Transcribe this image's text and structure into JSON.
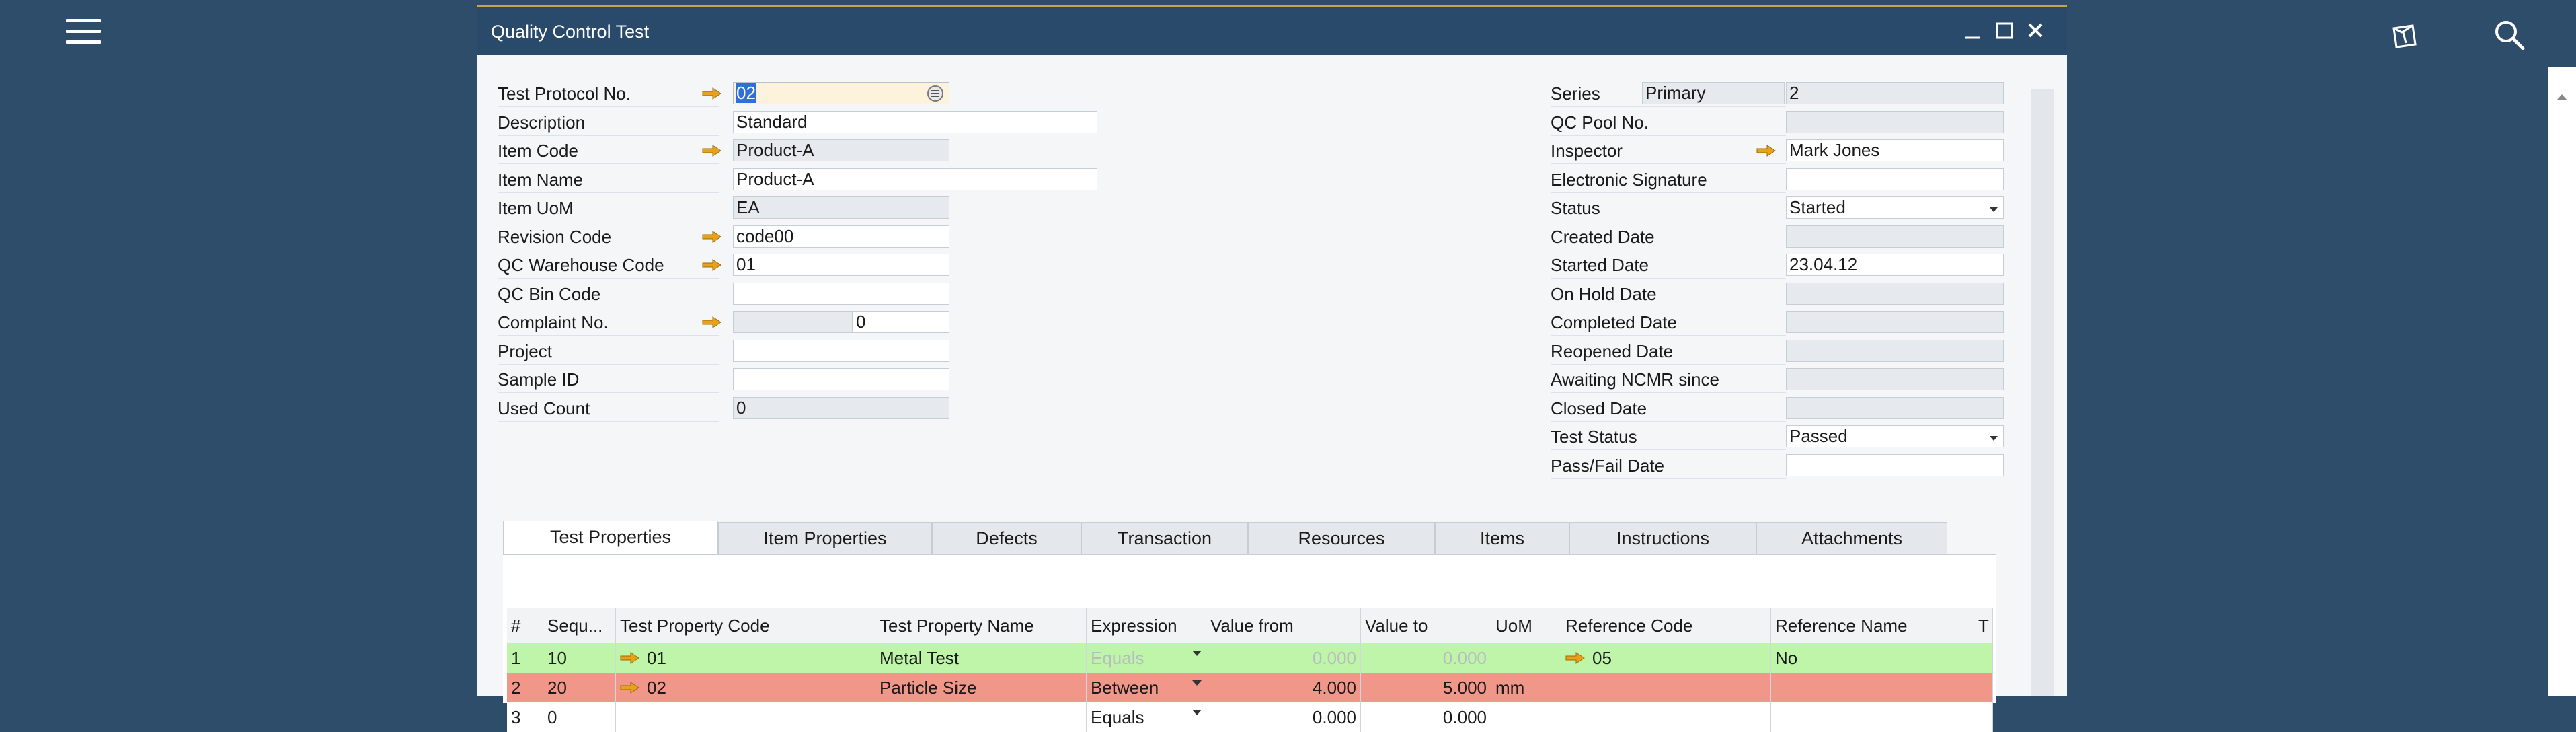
{
  "window": {
    "title": "Quality Control Test"
  },
  "header_left": [
    {
      "label": "Test Protocol No.",
      "value": "02",
      "arrow": true,
      "kind": "selected"
    },
    {
      "label": "Description",
      "value": "Standard",
      "kind": "wide"
    },
    {
      "label": "Item Code",
      "value": "Product-A",
      "arrow": true,
      "kind": "ro"
    },
    {
      "label": "Item Name",
      "value": "Product-A",
      "kind": "wide"
    },
    {
      "label": "Item UoM",
      "value": "EA",
      "kind": "ro"
    },
    {
      "label": "Revision Code",
      "value": "code00",
      "arrow": true,
      "kind": "normal"
    },
    {
      "label": "QC Warehouse Code",
      "value": "01",
      "arrow": true,
      "kind": "normal"
    },
    {
      "label": "QC Bin Code",
      "value": "",
      "kind": "normal"
    },
    {
      "label": "Complaint No.",
      "value": "",
      "value2": "0",
      "arrow": true,
      "kind": "split"
    },
    {
      "label": "Project",
      "value": "",
      "kind": "normal"
    },
    {
      "label": "Sample ID",
      "value": "",
      "kind": "normal"
    },
    {
      "label": "Used Count",
      "value": "0",
      "kind": "ro"
    }
  ],
  "header_right": [
    {
      "label": "Series",
      "value": "2",
      "series_name": "Primary",
      "kind": "series"
    },
    {
      "label": "QC Pool No.",
      "value": "",
      "kind": "ro"
    },
    {
      "label": "Inspector",
      "value": "Mark Jones",
      "arrow": true,
      "kind": "normal"
    },
    {
      "label": "Electronic Signature",
      "value": "",
      "kind": "normal"
    },
    {
      "label": "Status",
      "value": "Started",
      "kind": "dropdown"
    },
    {
      "label": "Created Date",
      "value": "",
      "kind": "ro"
    },
    {
      "label": "Started Date",
      "value": "23.04.12",
      "kind": "normal"
    },
    {
      "label": "On Hold Date",
      "value": "",
      "kind": "ro"
    },
    {
      "label": "Completed Date",
      "value": "",
      "kind": "ro"
    },
    {
      "label": "Reopened Date",
      "value": "",
      "kind": "ro"
    },
    {
      "label": "Awaiting NCMR since",
      "value": "",
      "kind": "ro"
    },
    {
      "label": "Closed Date",
      "value": "",
      "kind": "ro"
    },
    {
      "label": "Test Status",
      "value": "Passed",
      "kind": "dropdown"
    },
    {
      "label": "Pass/Fail Date",
      "value": "",
      "kind": "normal"
    }
  ],
  "tabs": [
    "Test Properties",
    "Item Properties",
    "Defects",
    "Transaction",
    "Resources",
    "Items",
    "Instructions",
    "Attachments"
  ],
  "active_tab": 0,
  "grid": {
    "columns": [
      "#",
      "Sequ...",
      "Test Property Code",
      "Test Property Name",
      "Expression",
      "Value from",
      "Value to",
      "UoM",
      "Reference Code",
      "Reference Name",
      "T"
    ],
    "rows": [
      {
        "status": "passed",
        "cells": [
          "1",
          "10",
          "01",
          "Metal Test",
          "Equals",
          "0.000",
          "0.000",
          "",
          "05",
          "No",
          ""
        ]
      },
      {
        "status": "failed",
        "cells": [
          "2",
          "20",
          "02",
          "Particle Size",
          "Between",
          "4.000",
          "5.000",
          "mm",
          "",
          "",
          ""
        ]
      },
      {
        "status": "none",
        "cells": [
          "3",
          "0",
          "",
          "",
          "Equals",
          "0.000",
          "0.000",
          "",
          "",
          "",
          ""
        ]
      }
    ]
  },
  "colors": {
    "passed_row": "#bff5a8",
    "failed_row": "#f0978a",
    "title_bar": "#2a4a6b",
    "arrow": "#e7a21a"
  },
  "icons": [
    "menu-icon",
    "notifications-tray-icon",
    "search-icon",
    "minimize-icon",
    "maximize-icon",
    "close-icon",
    "link-arrow-icon"
  ]
}
